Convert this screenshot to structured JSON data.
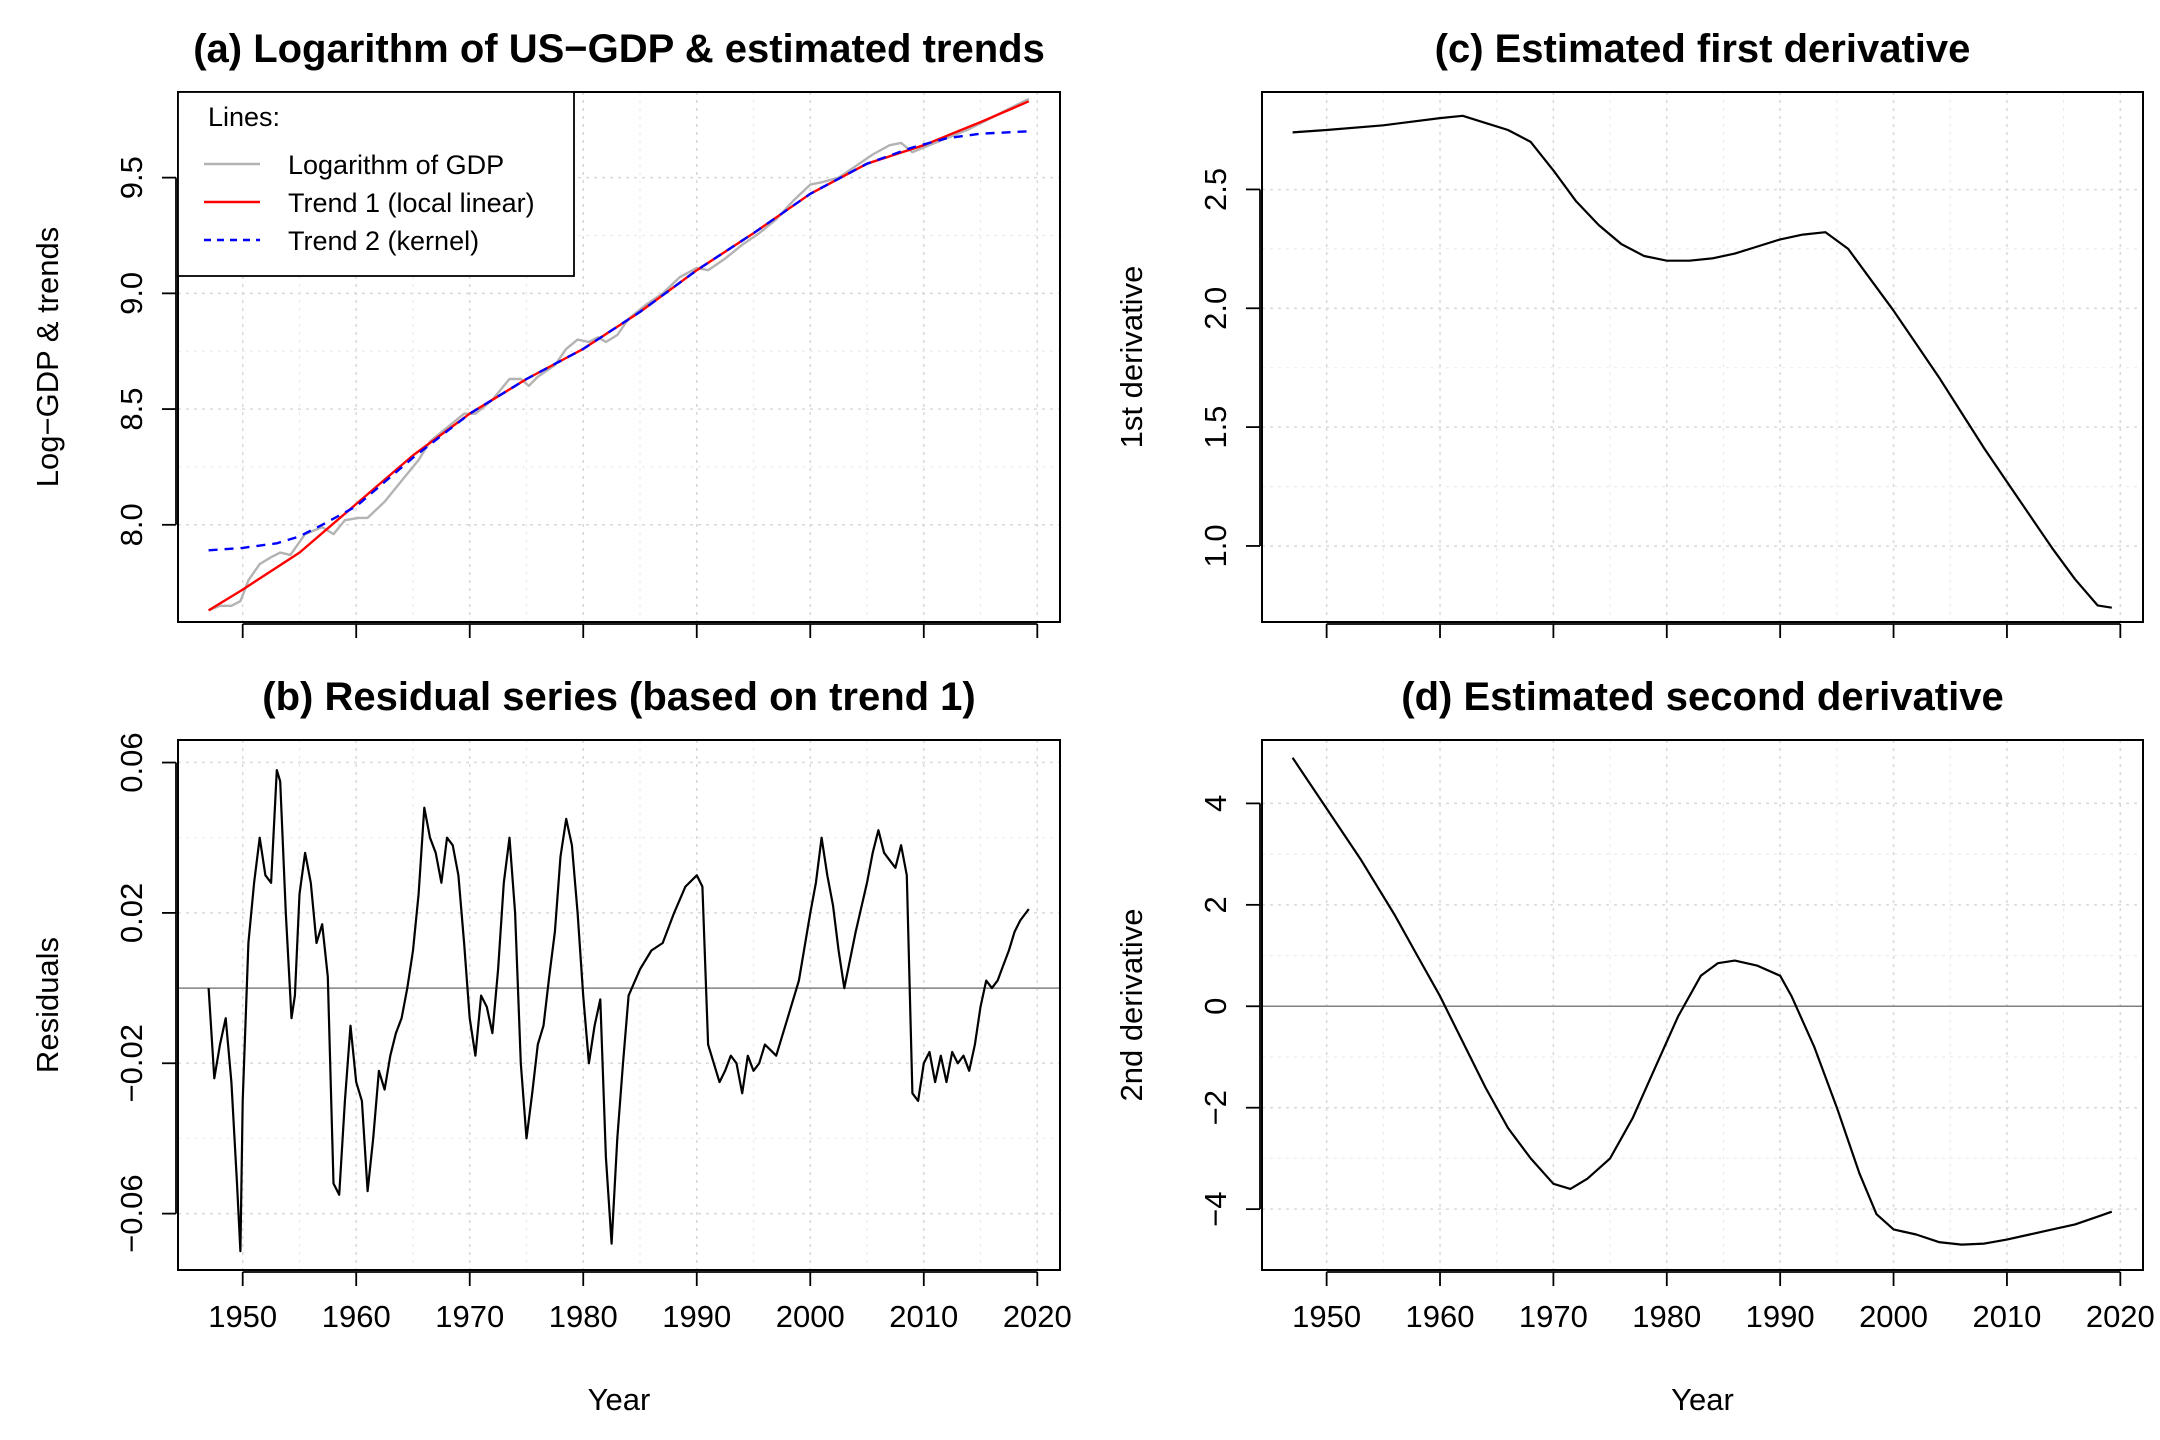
{
  "chart_data": [
    {
      "id": "a",
      "type": "line",
      "title": "(a) Logarithm of US−GDP & estimated trends",
      "xlabel": "",
      "ylabel": "Log−GDP & trends",
      "xlim": [
        1944.3,
        2022.0
      ],
      "ylim": [
        7.58,
        9.87
      ],
      "x_ticks": [
        1950,
        1960,
        1970,
        1980,
        1990,
        2000,
        2010,
        2020
      ],
      "x_tick_labels_shown": false,
      "y_ticks": [
        8.0,
        8.5,
        9.0,
        9.5
      ],
      "y_tick_labels": [
        "8.0",
        "8.5",
        "9.0",
        "9.5"
      ],
      "grid": true,
      "legend": {
        "title": "Lines:",
        "position": "top-left",
        "entries": [
          "Logarithm of GDP",
          "Trend 1 (local linear)",
          "Trend 2 (kernel)"
        ]
      },
      "series": [
        {
          "name": "Logarithm of GDP",
          "color": "#b3b3b3",
          "style": "solid",
          "x": [
            1947.0,
            1948.0,
            1949.0,
            1949.8,
            1950.5,
            1951.5,
            1952.5,
            1953.3,
            1954.2,
            1955.5,
            1957.0,
            1958.0,
            1959.0,
            1960.2,
            1961.0,
            1962.5,
            1964.0,
            1965.5,
            1966.5,
            1967.5,
            1968.5,
            1969.5,
            1970.5,
            1972.0,
            1973.5,
            1974.5,
            1975.2,
            1976.0,
            1977.5,
            1978.5,
            1979.5,
            1980.5,
            1981.3,
            1982.0,
            1983.0,
            1984.0,
            1985.5,
            1987.0,
            1988.5,
            1990.0,
            1991.0,
            1992.5,
            1994.0,
            1995.5,
            1997.0,
            1998.5,
            2000.0,
            2001.0,
            2002.5,
            2004.0,
            2005.5,
            2007.0,
            2008.0,
            2009.0,
            2010.5,
            2012.0,
            2014.0,
            2016.0,
            2018.0,
            2019.25
          ],
          "values": [
            7.63,
            7.65,
            7.65,
            7.67,
            7.76,
            7.83,
            7.86,
            7.88,
            7.87,
            7.96,
            7.99,
            7.96,
            8.02,
            8.03,
            8.03,
            8.1,
            8.19,
            8.28,
            8.36,
            8.4,
            8.44,
            8.48,
            8.48,
            8.54,
            8.63,
            8.63,
            8.6,
            8.64,
            8.69,
            8.76,
            8.8,
            8.79,
            8.81,
            8.79,
            8.82,
            8.89,
            8.95,
            9.0,
            9.07,
            9.11,
            9.1,
            9.15,
            9.21,
            9.26,
            9.32,
            9.4,
            9.47,
            9.48,
            9.5,
            9.55,
            9.6,
            9.64,
            9.65,
            9.61,
            9.64,
            9.67,
            9.71,
            9.76,
            9.81,
            9.84
          ]
        },
        {
          "name": "Trend 1 (local linear)",
          "color": "#ff0000",
          "style": "solid",
          "x": [
            1947.0,
            1950.0,
            1955.0,
            1960.0,
            1965.0,
            1970.0,
            1975.0,
            1980.0,
            1985.0,
            1990.0,
            1995.0,
            2000.0,
            2005.0,
            2010.0,
            2015.0,
            2019.25
          ],
          "values": [
            7.63,
            7.72,
            7.88,
            8.09,
            8.3,
            8.48,
            8.63,
            8.76,
            8.92,
            9.1,
            9.26,
            9.43,
            9.56,
            9.64,
            9.74,
            9.83
          ]
        },
        {
          "name": "Trend 2 (kernel)",
          "color": "#0000ff",
          "style": "dashed",
          "x": [
            1947.0,
            1950.0,
            1953.0,
            1955.0,
            1957.0,
            1960.0,
            1965.0,
            1970.0,
            1975.0,
            1980.0,
            1985.0,
            1990.0,
            1995.0,
            2000.0,
            2005.0,
            2009.0,
            2012.0,
            2015.0,
            2019.25
          ],
          "values": [
            7.89,
            7.9,
            7.92,
            7.95,
            8.0,
            8.08,
            8.29,
            8.48,
            8.63,
            8.76,
            8.92,
            9.1,
            9.26,
            9.43,
            9.56,
            9.63,
            9.67,
            9.69,
            9.7
          ]
        }
      ]
    },
    {
      "id": "b",
      "type": "line",
      "title": "(b) Residual series (based on trend 1)",
      "xlabel": "Year",
      "ylabel": "Residuals",
      "xlim": [
        1944.3,
        2022.0
      ],
      "ylim": [
        -0.075,
        0.066
      ],
      "x_ticks": [
        1950,
        1960,
        1970,
        1980,
        1990,
        2000,
        2010,
        2020
      ],
      "x_tick_labels": [
        "1950",
        "1960",
        "1970",
        "1980",
        "1990",
        "2000",
        "2010",
        "2020"
      ],
      "y_ticks": [
        -0.06,
        -0.02,
        0.02,
        0.06
      ],
      "y_tick_labels": [
        "−0.06",
        "−0.02",
        "0.02",
        "0.06"
      ],
      "zero_line": 0,
      "grid": true,
      "series": [
        {
          "name": "",
          "color": "#000000",
          "style": "solid",
          "x": [
            1947.0,
            1947.5,
            1948.0,
            1948.5,
            1949.0,
            1949.5,
            1949.8,
            1950.0,
            1950.5,
            1951.0,
            1951.5,
            1952.0,
            1952.5,
            1953.0,
            1953.3,
            1953.8,
            1954.3,
            1954.6,
            1955.0,
            1955.5,
            1956.0,
            1956.5,
            1957.0,
            1957.5,
            1958.0,
            1958.5,
            1959.0,
            1959.5,
            1960.0,
            1960.5,
            1961.0,
            1961.5,
            1962.0,
            1962.5,
            1963.0,
            1963.5,
            1964.0,
            1964.5,
            1965.0,
            1965.5,
            1966.0,
            1966.5,
            1967.0,
            1967.5,
            1968.0,
            1968.5,
            1969.0,
            1969.5,
            1970.0,
            1970.5,
            1971.0,
            1971.5,
            1972.0,
            1972.5,
            1973.0,
            1973.5,
            1974.0,
            1974.5,
            1975.0,
            1975.5,
            1976.0,
            1976.5,
            1977.0,
            1977.5,
            1978.0,
            1978.5,
            1979.0,
            1979.5,
            1980.0,
            1980.5,
            1981.0,
            1981.5,
            1982.0,
            1982.5,
            1983.0,
            1983.5,
            1984.0,
            1985.0,
            1986.0,
            1987.0,
            1988.0,
            1989.0,
            1990.0,
            1990.5,
            1991.0,
            1991.5,
            1992.0,
            1992.5,
            1993.0,
            1993.5,
            1994.0,
            1994.5,
            1995.0,
            1995.5,
            1996.0,
            1997.0,
            1998.0,
            1999.0,
            2000.0,
            2000.5,
            2001.0,
            2001.5,
            2002.0,
            2002.5,
            2003.0,
            2004.0,
            2005.0,
            2005.5,
            2006.0,
            2006.5,
            2007.0,
            2007.5,
            2008.0,
            2008.5,
            2009.0,
            2009.5,
            2010.0,
            2010.5,
            2011.0,
            2011.5,
            2012.0,
            2012.5,
            2013.0,
            2013.5,
            2014.0,
            2014.5,
            2015.0,
            2015.5,
            2016.0,
            2016.5,
            2017.0,
            2017.5,
            2018.0,
            2018.5,
            2019.0,
            2019.25
          ],
          "values": [
            0.0,
            -0.024,
            -0.015,
            -0.008,
            -0.025,
            -0.052,
            -0.07,
            -0.03,
            0.012,
            0.028,
            0.04,
            0.03,
            0.028,
            0.058,
            0.055,
            0.02,
            -0.008,
            -0.002,
            0.025,
            0.036,
            0.028,
            0.012,
            0.017,
            0.003,
            -0.052,
            -0.055,
            -0.03,
            -0.01,
            -0.025,
            -0.03,
            -0.054,
            -0.04,
            -0.022,
            -0.027,
            -0.018,
            -0.012,
            -0.008,
            0.0,
            0.01,
            0.025,
            0.048,
            0.04,
            0.036,
            0.028,
            0.04,
            0.038,
            0.03,
            0.012,
            -0.008,
            -0.018,
            -0.002,
            -0.005,
            -0.012,
            0.005,
            0.028,
            0.04,
            0.02,
            -0.02,
            -0.04,
            -0.028,
            -0.015,
            -0.01,
            0.003,
            0.015,
            0.035,
            0.045,
            0.038,
            0.02,
            -0.002,
            -0.02,
            -0.01,
            -0.003,
            -0.045,
            -0.068,
            -0.04,
            -0.02,
            -0.002,
            0.005,
            0.01,
            0.012,
            0.02,
            0.027,
            0.03,
            0.027,
            -0.015,
            -0.02,
            -0.025,
            -0.022,
            -0.018,
            -0.02,
            -0.028,
            -0.018,
            -0.022,
            -0.02,
            -0.015,
            -0.018,
            -0.008,
            0.002,
            0.02,
            0.028,
            0.04,
            0.03,
            0.022,
            0.01,
            0.0,
            0.015,
            0.028,
            0.036,
            0.042,
            0.036,
            0.034,
            0.032,
            0.038,
            0.03,
            -0.028,
            -0.03,
            -0.02,
            -0.017,
            -0.025,
            -0.018,
            -0.025,
            -0.017,
            -0.02,
            -0.018,
            -0.022,
            -0.015,
            -0.005,
            0.002,
            0.0,
            0.002,
            0.006,
            0.01,
            0.015,
            0.018,
            0.02,
            0.021
          ]
        }
      ]
    },
    {
      "id": "c",
      "type": "line",
      "title": "(c) Estimated first derivative",
      "xlabel": "",
      "ylabel": "1st derivative",
      "xlim": [
        1944.3,
        2022.0
      ],
      "ylim": [
        0.68,
        2.91
      ],
      "x_ticks": [
        1950,
        1960,
        1970,
        1980,
        1990,
        2000,
        2010,
        2020
      ],
      "x_tick_labels_shown": false,
      "y_ticks": [
        1.0,
        1.5,
        2.0,
        2.5
      ],
      "y_tick_labels": [
        "1.0",
        "1.5",
        "2.0",
        "2.5"
      ],
      "grid": true,
      "series": [
        {
          "name": "",
          "color": "#000000",
          "style": "solid",
          "x": [
            1947.0,
            1950.0,
            1955.0,
            1960.0,
            1962.0,
            1964.0,
            1966.0,
            1968.0,
            1970.0,
            1972.0,
            1974.0,
            1976.0,
            1978.0,
            1980.0,
            1982.0,
            1984.0,
            1986.0,
            1988.0,
            1990.0,
            1992.0,
            1994.0,
            1996.0,
            1998.0,
            2000.0,
            2002.0,
            2004.0,
            2006.0,
            2008.0,
            2010.0,
            2012.0,
            2014.0,
            2016.0,
            2018.0,
            2019.25
          ],
          "values": [
            2.74,
            2.75,
            2.77,
            2.8,
            2.81,
            2.78,
            2.75,
            2.7,
            2.58,
            2.45,
            2.35,
            2.27,
            2.22,
            2.2,
            2.2,
            2.21,
            2.23,
            2.26,
            2.29,
            2.31,
            2.32,
            2.25,
            2.12,
            1.99,
            1.85,
            1.71,
            1.56,
            1.41,
            1.27,
            1.13,
            0.99,
            0.86,
            0.75,
            0.74
          ]
        }
      ]
    },
    {
      "id": "d",
      "type": "line",
      "title": "(d) Estimated second derivative",
      "xlabel": "Year",
      "ylabel": "2nd derivative",
      "xlim": [
        1944.3,
        2022.0
      ],
      "ylim": [
        -5.2,
        5.25
      ],
      "x_ticks": [
        1950,
        1960,
        1970,
        1980,
        1990,
        2000,
        2010,
        2020
      ],
      "x_tick_labels": [
        "1950",
        "1960",
        "1970",
        "1980",
        "1990",
        "2000",
        "2010",
        "2020"
      ],
      "y_ticks": [
        -4,
        -2,
        0,
        2,
        4
      ],
      "y_tick_labels": [
        "−4",
        "−2",
        "0",
        "2",
        "4"
      ],
      "zero_line": 0,
      "grid": true,
      "series": [
        {
          "name": "",
          "color": "#000000",
          "style": "solid",
          "x": [
            1947.0,
            1950.0,
            1953.0,
            1956.0,
            1958.0,
            1960.0,
            1962.0,
            1964.0,
            1966.0,
            1968.0,
            1970.0,
            1971.5,
            1973.0,
            1975.0,
            1977.0,
            1979.0,
            1981.0,
            1983.0,
            1984.5,
            1986.0,
            1988.0,
            1990.0,
            1991.0,
            1993.0,
            1995.0,
            1997.0,
            1998.5,
            2000.0,
            2001.0,
            2002.0,
            2004.0,
            2006.0,
            2008.0,
            2010.0,
            2012.0,
            2014.0,
            2016.0,
            2018.0,
            2019.25
          ],
          "values": [
            4.9,
            3.9,
            2.9,
            1.8,
            1.0,
            0.2,
            -0.7,
            -1.6,
            -2.4,
            -3.0,
            -3.5,
            -3.6,
            -3.4,
            -3.0,
            -2.2,
            -1.2,
            -0.2,
            0.6,
            0.85,
            0.9,
            0.8,
            0.6,
            0.2,
            -0.8,
            -2.0,
            -3.3,
            -4.1,
            -4.4,
            -4.45,
            -4.5,
            -4.65,
            -4.7,
            -4.68,
            -4.6,
            -4.5,
            -4.4,
            -4.3,
            -4.15,
            -4.05
          ]
        }
      ]
    }
  ]
}
